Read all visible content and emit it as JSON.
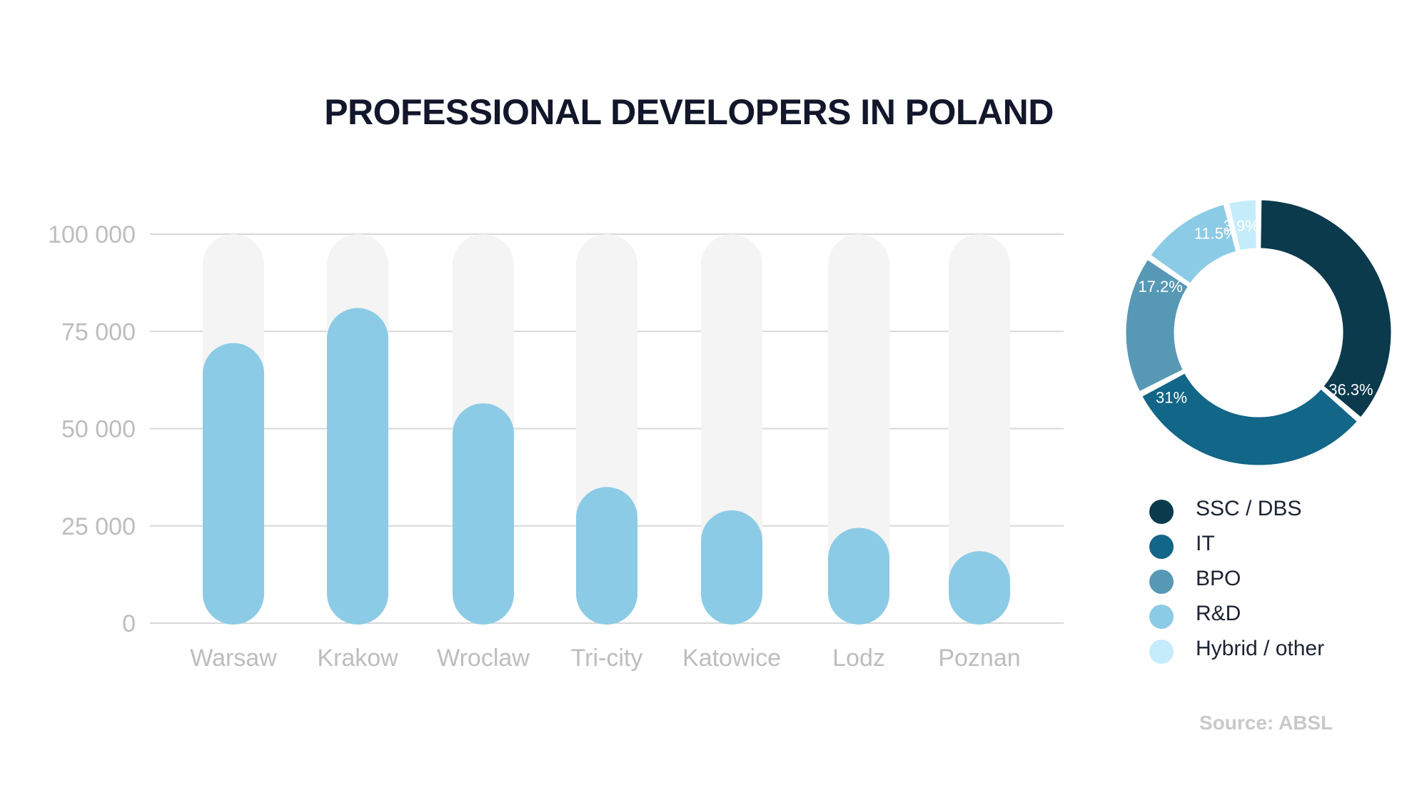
{
  "chart_data": [
    {
      "type": "bar",
      "title": "PROFESSIONAL DEVELOPERS IN POLAND",
      "categories": [
        "Warsaw",
        "Krakow",
        "Wroclaw",
        "Tri-city",
        "Katowice",
        "Lodz",
        "Poznan"
      ],
      "values": [
        72000,
        81000,
        56500,
        35000,
        29000,
        24500,
        18500
      ],
      "ylim": [
        0,
        100000
      ],
      "yticks": [
        0,
        25000,
        50000,
        75000,
        100000
      ],
      "ytick_labels": [
        "0",
        "25 000",
        "50 000",
        "75 000",
        "100 000"
      ],
      "xlabel": "",
      "ylabel": "",
      "grid": true,
      "colors": {
        "bar": "#8ccbe5",
        "track": "#f4f4f4",
        "grid": "#d8d8d8",
        "tick": "#bdbdbd"
      }
    },
    {
      "type": "pie",
      "style": "donut",
      "labels": [
        "SSC / DBS",
        "IT",
        "BPO",
        "R&D",
        "Hybrid / other"
      ],
      "values": [
        36.3,
        31,
        17.2,
        11.5,
        3.9
      ],
      "value_labels": [
        "36.3%",
        "31%",
        "17.2%",
        "11.5%",
        "3.9%"
      ],
      "colors": [
        "#0b3a4d",
        "#126687",
        "#5799b5",
        "#8ccbe5",
        "#c5ecfb"
      ],
      "legend": "bottom"
    }
  ],
  "source": "Source: ABSL"
}
